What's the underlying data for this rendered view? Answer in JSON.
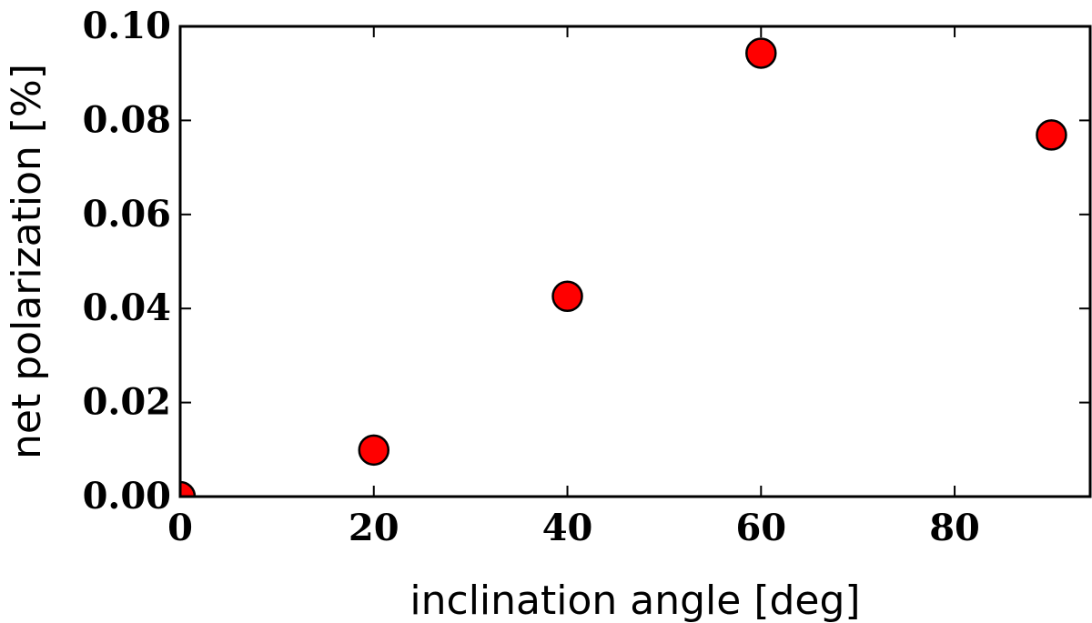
{
  "chart_data": {
    "type": "scatter",
    "title": "",
    "xlabel": "inclination angle [deg]",
    "ylabel": "net polarization [%]",
    "xlim": [
      0,
      94
    ],
    "ylim": [
      0,
      0.1
    ],
    "x_ticks": [
      0,
      20,
      40,
      60,
      80
    ],
    "y_ticks": [
      0,
      0.02,
      0.04,
      0.06,
      0.08,
      0.1
    ],
    "x_tick_labels": [
      "0",
      "20",
      "40",
      "60",
      "80"
    ],
    "y_tick_labels": [
      "0.00",
      "0.02",
      "0.04",
      "0.06",
      "0.08",
      "0.10"
    ],
    "grid": false,
    "legend": null,
    "marker_color": "#ff0000",
    "marker_edge_color": "#000000",
    "series": [
      {
        "x": [
          0,
          20,
          40,
          60,
          90
        ],
        "y": [
          0.0,
          0.0099,
          0.0426,
          0.0943,
          0.0769
        ]
      }
    ]
  }
}
